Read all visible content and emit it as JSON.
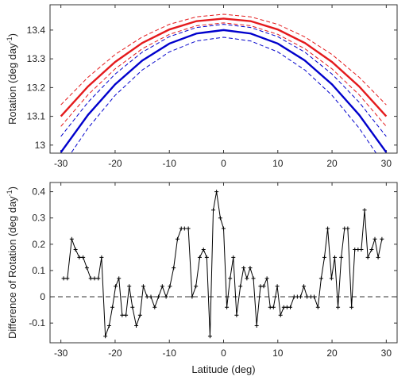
{
  "chart_data": [
    {
      "type": "line",
      "ylabel": [
        "Rotation (deg day",
        "-1",
        ")"
      ],
      "x": [
        -30,
        -25,
        -20,
        -15,
        -10,
        -5,
        0,
        5,
        10,
        15,
        20,
        25,
        30
      ],
      "series": [
        {
          "color": "#e41a1c",
          "linestyle": "solid",
          "values": [
            13.1,
            13.204,
            13.289,
            13.355,
            13.402,
            13.431,
            13.44,
            13.431,
            13.402,
            13.355,
            13.289,
            13.204,
            13.1
          ]
        },
        {
          "color": "#e41a1c",
          "linestyle": "dashed",
          "values": [
            13.14,
            13.236,
            13.315,
            13.376,
            13.42,
            13.446,
            13.455,
            13.446,
            13.42,
            13.376,
            13.315,
            13.236,
            13.14
          ]
        },
        {
          "color": "#e41a1c",
          "linestyle": "dashed",
          "values": [
            13.065,
            13.175,
            13.265,
            13.335,
            13.385,
            13.415,
            13.425,
            13.415,
            13.385,
            13.335,
            13.265,
            13.175,
            13.065
          ]
        },
        {
          "color": "#0000cc",
          "linestyle": "solid",
          "values": [
            12.975,
            13.105,
            13.211,
            13.294,
            13.353,
            13.388,
            13.4,
            13.388,
            13.353,
            13.294,
            13.211,
            13.105,
            12.975
          ]
        },
        {
          "color": "#0000cc",
          "linestyle": "dashed",
          "values": [
            13.03,
            13.149,
            13.247,
            13.323,
            13.377,
            13.409,
            13.42,
            13.409,
            13.377,
            13.323,
            13.247,
            13.149,
            13.03
          ]
        },
        {
          "color": "#0000cc",
          "linestyle": "dashed",
          "values": [
            12.92,
            13.059,
            13.173,
            13.261,
            13.324,
            13.362,
            13.375,
            13.362,
            13.324,
            13.261,
            13.173,
            13.059,
            12.92
          ]
        }
      ],
      "xlim": [
        -32,
        32
      ],
      "xticks": [
        -30,
        -20,
        -10,
        0,
        10,
        20,
        30
      ],
      "ylim": [
        12.972,
        13.488
      ],
      "yticks": [
        13,
        13.1,
        13.2,
        13.3,
        13.4
      ]
    },
    {
      "type": "line",
      "ylabel": [
        "Difference of Rotation (deg day",
        "-1",
        ")"
      ],
      "xlabel": "Latitude (deg)",
      "marker": "+",
      "hline": 0,
      "x": [
        -29.5,
        -28.8,
        -28,
        -27.3,
        -26.6,
        -25.9,
        -25.2,
        -24.5,
        -23.8,
        -23.1,
        -22.5,
        -21.8,
        -21.1,
        -20.5,
        -19.9,
        -19.3,
        -18.7,
        -18,
        -17.4,
        -16.8,
        -16.1,
        -15.4,
        -14.8,
        -14.1,
        -13.4,
        -12.7,
        -12,
        -11.3,
        -10.6,
        -9.9,
        -9.2,
        -8.5,
        -7.8,
        -7.2,
        -6.5,
        -5.8,
        -5.1,
        -4.4,
        -3.7,
        -3.1,
        -2.5,
        -1.9,
        -1.3,
        -0.6,
        0,
        0.6,
        1.2,
        1.8,
        2.4,
        3.1,
        3.7,
        4.3,
        4.9,
        5.5,
        6.1,
        6.8,
        7.4,
        8,
        8.6,
        9.2,
        9.9,
        10.5,
        11.1,
        11.7,
        12.3,
        13,
        13.6,
        14.2,
        14.8,
        15.4,
        16.1,
        16.7,
        17.4,
        18,
        18.6,
        19.2,
        19.9,
        20.5,
        21.1,
        21.7,
        22.3,
        22.9,
        23.6,
        24.2,
        24.8,
        25.4,
        26,
        26.6,
        27.3,
        27.9,
        28.5,
        29.2
      ],
      "series": [
        {
          "color": "#000000",
          "values": [
            0.07,
            0.07,
            0.22,
            0.18,
            0.15,
            0.15,
            0.11,
            0.07,
            0.07,
            0.07,
            0.15,
            -0.15,
            -0.11,
            -0.04,
            0.04,
            0.07,
            -0.07,
            -0.07,
            0.04,
            -0.04,
            -0.11,
            -0.07,
            0.04,
            0,
            0,
            -0.04,
            0,
            0.04,
            0,
            0.04,
            0.11,
            0.22,
            0.26,
            0.26,
            0.26,
            0,
            0.04,
            0.15,
            0.18,
            0.15,
            -0.15,
            0.33,
            0.4,
            0.3,
            0.26,
            -0.04,
            0.07,
            0.15,
            -0.07,
            0.04,
            0.11,
            0.07,
            0.11,
            0.07,
            -0.11,
            0.04,
            0.04,
            0.07,
            -0.04,
            -0.04,
            0.04,
            -0.07,
            -0.04,
            -0.04,
            -0.04,
            0,
            0,
            0,
            0.04,
            0,
            0,
            0,
            -0.04,
            0.07,
            0.15,
            0.26,
            0.07,
            0.15,
            -0.04,
            0.15,
            0.26,
            0.26,
            -0.04,
            0.18,
            0.18,
            0.18,
            0.33,
            0.15,
            0.18,
            0.22,
            0.15,
            0.22
          ]
        }
      ],
      "xlim": [
        -32,
        32
      ],
      "xticks": [
        -30,
        -20,
        -10,
        0,
        10,
        20,
        30
      ],
      "ylim": [
        -0.175,
        0.435
      ],
      "yticks": [
        -0.1,
        0,
        0.1,
        0.2,
        0.3,
        0.4
      ]
    }
  ]
}
